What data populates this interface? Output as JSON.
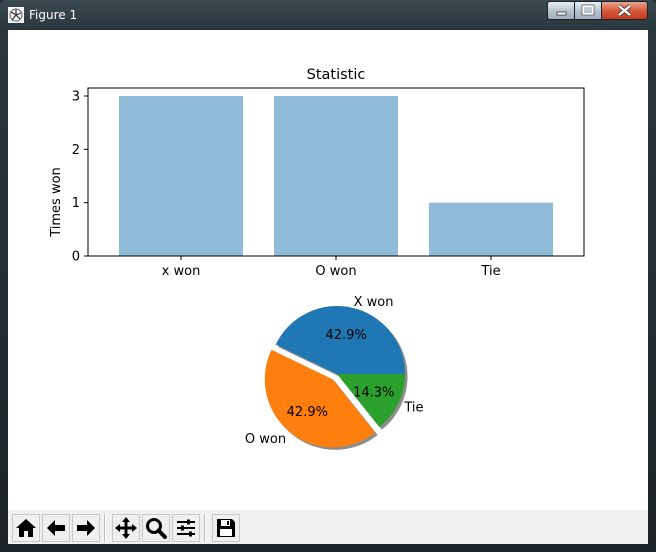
{
  "window": {
    "title": "Figure 1"
  },
  "toolbar": {
    "buttons": [
      "home-icon",
      "back-icon",
      "forward-icon",
      "pan-icon",
      "zoom-icon",
      "configure-icon",
      "save-icon"
    ]
  },
  "colors": {
    "bar": "#8fbad8",
    "pie_x": "#1f77b4",
    "pie_o": "#ff7f0e",
    "pie_tie": "#2ca02c"
  },
  "chart_data": [
    {
      "type": "bar",
      "title": "Statistic",
      "xlabel": "",
      "ylabel": "Times won",
      "categories": [
        "x won",
        "O won",
        "Tie"
      ],
      "values": [
        3,
        3,
        1
      ],
      "ylim": [
        0,
        3.15
      ],
      "yticks": [
        "0",
        "1",
        "2",
        "3"
      ],
      "grid": false
    },
    {
      "type": "pie",
      "labels": [
        "X won",
        "O won",
        "Tie"
      ],
      "values": [
        3,
        3,
        1
      ],
      "percent_labels": [
        "42.9%",
        "42.9%",
        "14.3%"
      ],
      "explode": [
        0,
        0.1,
        0
      ],
      "shadow": true
    }
  ]
}
